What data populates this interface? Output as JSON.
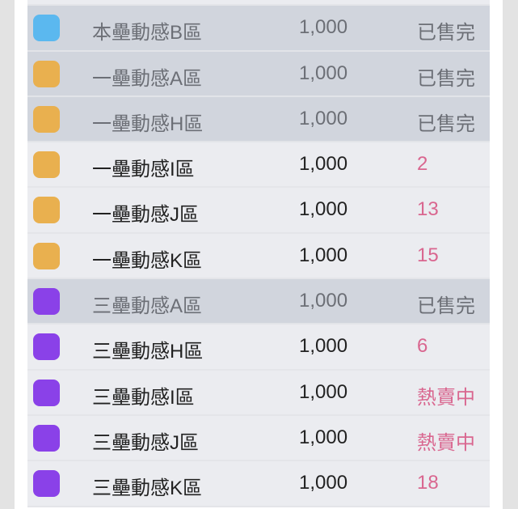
{
  "colors": {
    "blue": "#5bb8ef",
    "orange": "#e9b04f",
    "purple": "#8a41e8",
    "available_status": "#d9668f"
  },
  "rows": [
    {
      "name": "",
      "price": "",
      "status": "",
      "color": "#ebecf0",
      "sold": false
    },
    {
      "name": "本壘動感B區",
      "price": "1,000",
      "status": "已售完",
      "color": "#5bb8ef",
      "sold": true
    },
    {
      "name": "一壘動感A區",
      "price": "1,000",
      "status": "已售完",
      "color": "#e9b04f",
      "sold": true
    },
    {
      "name": "一壘動感H區",
      "price": "1,000",
      "status": "已售完",
      "color": "#e9b04f",
      "sold": true
    },
    {
      "name": "一壘動感I區",
      "price": "1,000",
      "status": "2",
      "color": "#e9b04f",
      "sold": false
    },
    {
      "name": "一壘動感J區",
      "price": "1,000",
      "status": "13",
      "color": "#e9b04f",
      "sold": false
    },
    {
      "name": "一壘動感K區",
      "price": "1,000",
      "status": "15",
      "color": "#e9b04f",
      "sold": false
    },
    {
      "name": "三壘動感A區",
      "price": "1,000",
      "status": "已售完",
      "color": "#8a41e8",
      "sold": true
    },
    {
      "name": "三壘動感H區",
      "price": "1,000",
      "status": "6",
      "color": "#8a41e8",
      "sold": false
    },
    {
      "name": "三壘動感I區",
      "price": "1,000",
      "status": "熱賣中",
      "color": "#8a41e8",
      "sold": false
    },
    {
      "name": "三壘動感J區",
      "price": "1,000",
      "status": "熱賣中",
      "color": "#8a41e8",
      "sold": false
    },
    {
      "name": "三壘動感K區",
      "price": "1,000",
      "status": "18",
      "color": "#8a41e8",
      "sold": false
    }
  ]
}
